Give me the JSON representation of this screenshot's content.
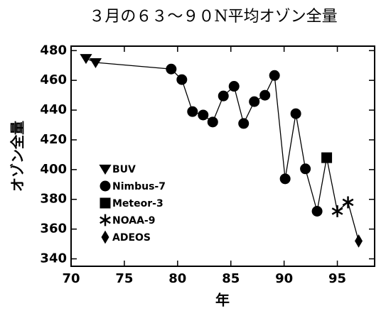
{
  "chart_data": {
    "type": "scatter-line",
    "title": "３月の６３～９０N平均オゾン全量",
    "x_label": "年",
    "y_label": "オゾン全量",
    "xlim": [
      70,
      98.5
    ],
    "ylim": [
      335,
      483
    ],
    "xticks": [
      70,
      75,
      80,
      85,
      90,
      95
    ],
    "yticks": [
      340,
      360,
      380,
      400,
      420,
      440,
      460,
      480
    ],
    "legend": "lower left",
    "connect": true,
    "series": [
      {
        "name": "BUV",
        "marker": "triangle-down",
        "color": "#000000",
        "x": [
          71.4,
          72.3
        ],
        "values": [
          474.8,
          472
        ]
      },
      {
        "name": "Nimbus-7",
        "marker": "circle",
        "color": "#000000",
        "x": [
          79.4,
          80.4,
          81.4,
          82.4,
          83.3,
          84.3,
          85.3,
          86.2,
          87.2,
          88.2,
          89.1,
          90.1,
          91.1,
          92.0,
          93.1
        ],
        "values": [
          467.6,
          460.5,
          439,
          436.7,
          432,
          449.5,
          456,
          431,
          445.7,
          450,
          463.3,
          393.8,
          437.6,
          400.5,
          372
        ]
      },
      {
        "name": "Meteor-3",
        "marker": "square",
        "color": "#000000",
        "x": [
          94.0
        ],
        "values": [
          408
        ]
      },
      {
        "name": "NOAA-9",
        "marker": "star",
        "color": "#000000",
        "x": [
          95.0,
          96.0
        ],
        "values": [
          372,
          378
        ]
      },
      {
        "name": "ADEOS",
        "marker": "diamond",
        "color": "#000000",
        "x": [
          97.0
        ],
        "values": [
          352
        ]
      }
    ]
  }
}
